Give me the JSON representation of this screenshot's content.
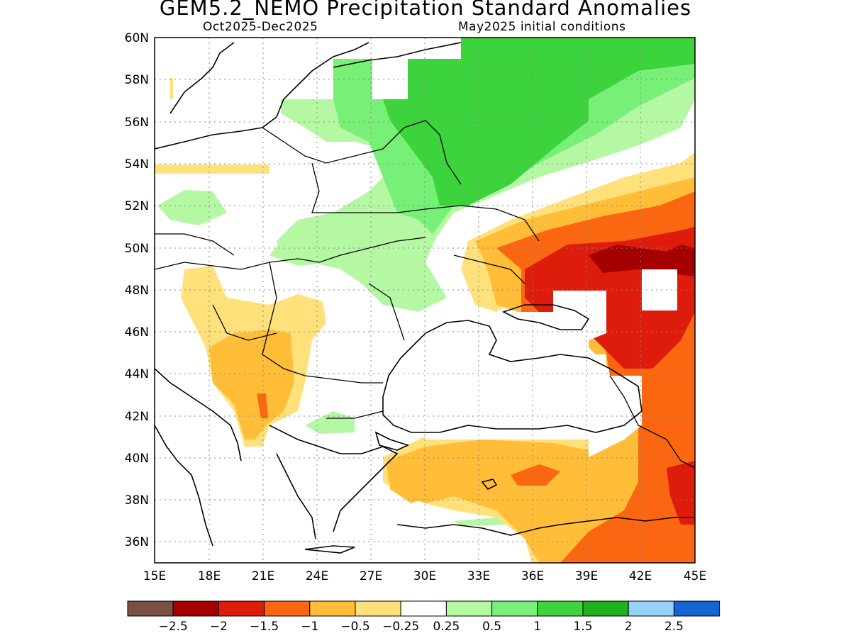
{
  "title": "GEM5.2_NEMO Precipitation Standard Anomalies",
  "period": "Oct2025-Dec2025",
  "initial_conditions": "May2025 initial conditions",
  "map": {
    "lat_labels": [
      "60N",
      "58N",
      "56N",
      "54N",
      "52N",
      "50N",
      "48N",
      "46N",
      "44N",
      "42N",
      "40N",
      "38N",
      "36N"
    ],
    "lon_labels": [
      "15E",
      "18E",
      "21E",
      "24E",
      "27E",
      "30E",
      "33E",
      "36E",
      "39E",
      "42E",
      "45E"
    ],
    "extent": {
      "lon_min": 15,
      "lon_max": 45,
      "lat_min": 35,
      "lat_max": 60
    }
  },
  "legend": {
    "colors": [
      "#7a5044",
      "#a50000",
      "#dd1c0c",
      "#fa6710",
      "#ffbd38",
      "#ffe17c",
      "#ffffff",
      "#b4f8a4",
      "#78f078",
      "#3cd33c",
      "#20b020",
      "#96d2fa",
      "#1464d2"
    ],
    "labels": [
      "-2.5",
      "-2",
      "-1.5",
      "-1",
      "-0.5",
      "-0.25",
      "0.25",
      "0.5",
      "1",
      "1.5",
      "2",
      "2.5"
    ]
  },
  "colors": {
    "dry_moderate": "#fa6710",
    "dry_strong": "#dd1c0c",
    "dry_weak": "#ffbd38",
    "wet_weak": "#b4f8a4",
    "wet_moderate": "#78f078",
    "wet_strong": "#3cd33c"
  }
}
